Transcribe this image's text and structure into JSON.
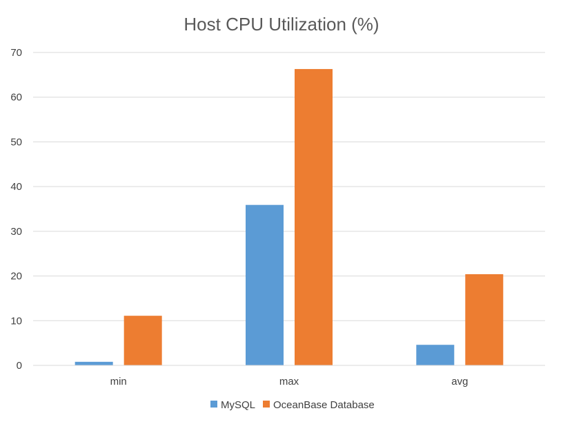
{
  "chart_data": {
    "type": "bar",
    "title": "Host CPU Utilization (%)",
    "categories": [
      "min",
      "max",
      "avg"
    ],
    "series": [
      {
        "name": "MySQL",
        "color": "#5b9bd5",
        "values": [
          0.8,
          35.9,
          4.6
        ]
      },
      {
        "name": "OceanBase Database",
        "color": "#ed7d31",
        "values": [
          11.1,
          66.3,
          20.4
        ]
      }
    ],
    "ylim": [
      0,
      70
    ],
    "yticks": [
      0,
      10,
      20,
      30,
      40,
      50,
      60,
      70
    ],
    "yticks_labels": [
      "0",
      "10",
      "20",
      "30",
      "40",
      "50",
      "60",
      "70"
    ],
    "xlabel": "",
    "ylabel": "",
    "grid": true,
    "legend": "bottom"
  }
}
